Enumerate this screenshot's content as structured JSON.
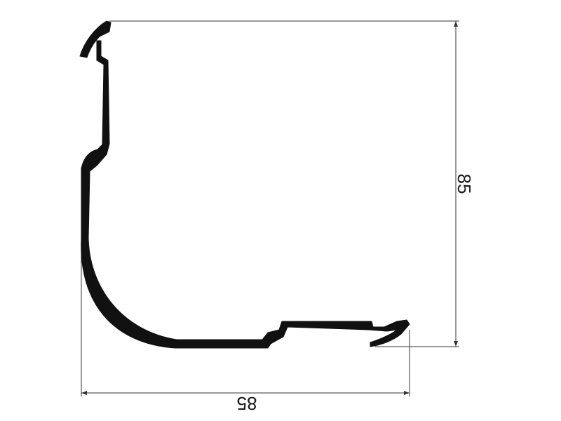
{
  "drawing": {
    "type": "profile-cross-section",
    "dimensions": {
      "height_label": "85",
      "width_label": "85"
    },
    "colors": {
      "profile": "#111111",
      "dimension_line": "#333333",
      "background": "#ffffff"
    }
  }
}
